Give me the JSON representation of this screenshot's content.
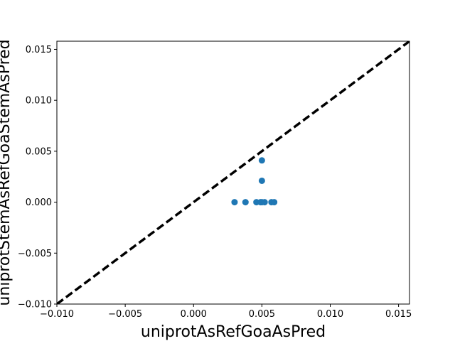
{
  "chart_data": {
    "type": "scatter",
    "title": "",
    "xlabel": "uniprotAsRefGoaAsPred",
    "ylabel": "uniprotStemAsRefGoaStemAsPred",
    "xlim": [
      -0.01,
      0.0158
    ],
    "ylim": [
      -0.01,
      0.0158
    ],
    "xticks": [
      -0.01,
      -0.005,
      0.0,
      0.005,
      0.01,
      0.015
    ],
    "yticks": [
      -0.01,
      -0.005,
      0.0,
      0.005,
      0.01,
      0.015
    ],
    "xtick_labels": [
      "−0.010",
      "−0.005",
      "0.000",
      "0.005",
      "0.010",
      "0.015"
    ],
    "ytick_labels": [
      "−0.010",
      "−0.005",
      "0.000",
      "0.005",
      "0.010",
      "0.015"
    ],
    "grid": false,
    "reference_line": {
      "style": "dashed",
      "color": "#000000",
      "equation": "y = x"
    },
    "series": [
      {
        "color": "#1f77b4",
        "points": [
          {
            "x": 0.003,
            "y": 0.0
          },
          {
            "x": 0.0038,
            "y": 0.0
          },
          {
            "x": 0.0046,
            "y": 0.0
          },
          {
            "x": 0.0049,
            "y": 0.0
          },
          {
            "x": 0.005,
            "y": 0.0
          },
          {
            "x": 0.0052,
            "y": 0.0
          },
          {
            "x": 0.0057,
            "y": 0.0
          },
          {
            "x": 0.0059,
            "y": 0.0
          },
          {
            "x": 0.005,
            "y": 0.0021
          },
          {
            "x": 0.005,
            "y": 0.0041
          }
        ]
      }
    ]
  }
}
